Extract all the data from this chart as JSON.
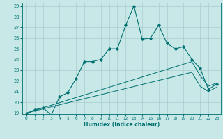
{
  "xlabel": "Humidex (Indice chaleur)",
  "bg_color": "#c8e8e8",
  "grid_color": "#aacccc",
  "line_color": "#007070",
  "xlim": [
    -0.5,
    23.5
  ],
  "ylim": [
    18.9,
    29.3
  ],
  "xticks": [
    0,
    1,
    2,
    3,
    4,
    5,
    6,
    7,
    8,
    9,
    10,
    11,
    12,
    13,
    14,
    15,
    16,
    17,
    18,
    19,
    20,
    21,
    22,
    23
  ],
  "yticks": [
    19,
    20,
    21,
    22,
    23,
    24,
    25,
    26,
    27,
    28,
    29
  ],
  "main_x": [
    0,
    1,
    2,
    3,
    4,
    5,
    6,
    7,
    8,
    9,
    10,
    11,
    12,
    13,
    14,
    15,
    16,
    17,
    18,
    19,
    20,
    21,
    22,
    23
  ],
  "main_y": [
    18.9,
    19.3,
    19.5,
    18.8,
    20.5,
    20.9,
    22.2,
    23.8,
    23.8,
    24.0,
    25.0,
    25.0,
    27.2,
    29.0,
    25.9,
    26.0,
    27.2,
    25.5,
    25.0,
    25.2,
    24.0,
    23.2,
    21.2,
    21.7
  ],
  "line2_x": [
    0,
    20,
    21,
    22,
    23
  ],
  "line2_y": [
    19.0,
    23.8,
    22.5,
    21.5,
    21.8
  ],
  "line3_x": [
    0,
    20,
    21,
    22,
    23
  ],
  "line3_y": [
    19.0,
    22.8,
    21.5,
    21.0,
    21.4
  ]
}
